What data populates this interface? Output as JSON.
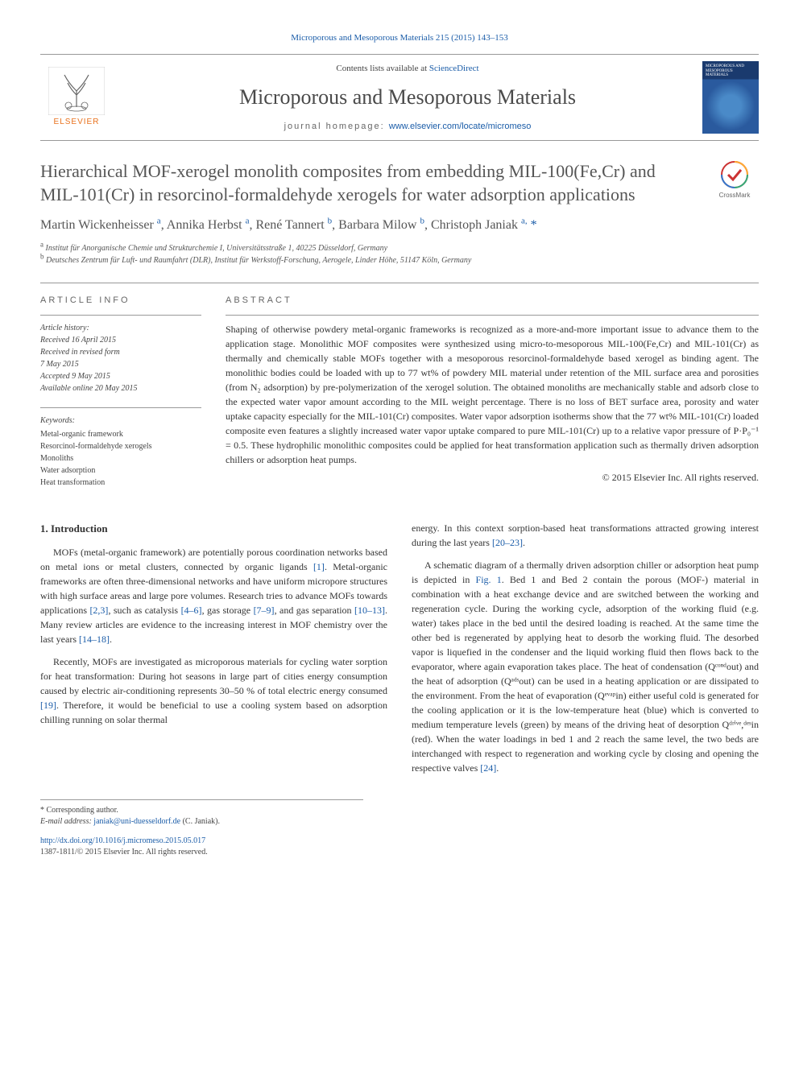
{
  "top_citation": {
    "text": "Microporous and Mesoporous Materials 215 (2015) 143–153",
    "href": "#"
  },
  "header": {
    "contents_prefix": "Contents lists available at ",
    "contents_link": "ScienceDirect",
    "journal": "Microporous and Mesoporous Materials",
    "homepage_prefix": "journal homepage: ",
    "homepage_link": "www.elsevier.com/locate/micromeso",
    "brand": "ELSEVIER",
    "cover_label": "MICROPOROUS AND MESOPOROUS MATERIALS"
  },
  "crossmark": "CrossMark",
  "article": {
    "title": "Hierarchical MOF-xerogel monolith composites from embedding MIL-100(Fe,Cr) and MIL-101(Cr) in resorcinol-formaldehyde xerogels for water adsorption applications",
    "authors_html": "Martin Wickenheisser <sup>a</sup>, Annika Herbst <sup>a</sup>, René Tannert <sup>b</sup>, Barbara Milow <sup>b</sup>, Christoph Janiak <sup>a,</sup> <span class='corr'>*</span>",
    "affiliations": [
      {
        "sup": "a",
        "text": "Institut für Anorganische Chemie und Strukturchemie I, Universitätsstraße 1, 40225 Düsseldorf, Germany"
      },
      {
        "sup": "b",
        "text": "Deutsches Zentrum für Luft- und Raumfahrt (DLR), Institut für Werkstoff-Forschung, Aerogele, Linder Höhe, 51147 Köln, Germany"
      }
    ]
  },
  "info": {
    "head": "ARTICLE INFO",
    "history_label": "Article history:",
    "history": [
      "Received 16 April 2015",
      "Received in revised form",
      "7 May 2015",
      "Accepted 9 May 2015",
      "Available online 20 May 2015"
    ],
    "keywords_label": "Keywords:",
    "keywords": [
      "Metal-organic framework",
      "Resorcinol-formaldehyde xerogels",
      "Monoliths",
      "Water adsorption",
      "Heat transformation"
    ]
  },
  "abstract": {
    "head": "ABSTRACT",
    "text": "Shaping of otherwise powdery metal-organic frameworks is recognized as a more-and-more important issue to advance them to the application stage. Monolithic MOF composites were synthesized using micro-to-mesoporous MIL-100(Fe,Cr) and MIL-101(Cr) as thermally and chemically stable MOFs together with a mesoporous resorcinol-formaldehyde based xerogel as binding agent. The monolithic bodies could be loaded with up to 77 wt% of powdery MIL material under retention of the MIL surface area and porosities (from N₂ adsorption) by pre-polymerization of the xerogel solution. The obtained monoliths are mechanically stable and adsorb close to the expected water vapor amount according to the MIL weight percentage. There is no loss of BET surface area, porosity and water uptake capacity especially for the MIL-101(Cr) composites. Water vapor adsorption isotherms show that the 77 wt% MIL-101(Cr) loaded composite even features a slightly increased water vapor uptake compared to pure MIL-101(Cr) up to a relative vapor pressure of P·P₀⁻¹ = 0.5. These hydrophilic monolithic composites could be applied for heat transformation application such as thermally driven adsorption chillers or adsorption heat pumps.",
    "copyright": "© 2015 Elsevier Inc. All rights reserved."
  },
  "body": {
    "intro_head": "1. Introduction",
    "p1": "MOFs (metal-organic framework) are potentially porous coordination networks based on metal ions or metal clusters, connected by organic ligands [1]. Metal-organic frameworks are often three-dimensional networks and have uniform micropore structures with high surface areas and large pore volumes. Research tries to advance MOFs towards applications [2,3], such as catalysis [4–6], gas storage [7–9], and gas separation [10–13]. Many review articles are evidence to the increasing interest in MOF chemistry over the last years [14–18].",
    "p2": "Recently, MOFs are investigated as microporous materials for cycling water sorption for heat transformation: During hot seasons in large part of cities energy consumption caused by electric air-conditioning represents 30–50 % of total electric energy consumed [19]. Therefore, it would be beneficial to use a cooling system based on adsorption chilling running on solar thermal",
    "p3": "energy. In this context sorption-based heat transformations attracted growing interest during the last years [20–23].",
    "p4": "A schematic diagram of a thermally driven adsorption chiller or adsorption heat pump is depicted in Fig. 1. Bed 1 and Bed 2 contain the porous (MOF-) material in combination with a heat exchange device and are switched between the working and regeneration cycle. During the working cycle, adsorption of the working fluid (e.g. water) takes place in the bed until the desired loading is reached. At the same time the other bed is regenerated by applying heat to desorb the working fluid. The desorbed vapor is liquefied in the condenser and the liquid working fluid then flows back to the evaporator, where again evaporation takes place. The heat of condensation (Qᶜᵒⁿᵈout) and the heat of adsorption (Qᵃᵈˢout) can be used in a heating application or are dissipated to the environment. From the heat of evaporation (Qᵉᵛᵃᵖin) either useful cold is generated for the cooling application or it is the low-temperature heat (blue) which is converted to medium temperature levels (green) by means of the driving heat of desorption Qᵈʳⁱᵛᵉ,ᵈᵉˢin (red). When the water loadings in bed 1 and 2 reach the same level, the two beds are interchanged with respect to regeneration and working cycle by closing and opening the respective valves [24]."
  },
  "footnotes": {
    "corr": "* Corresponding author.",
    "email_label": "E-mail address: ",
    "email": "janiak@uni-duesseldorf.de",
    "email_suffix": " (C. Janiak).",
    "doi": "http://dx.doi.org/10.1016/j.micromeso.2015.05.017",
    "issn_copy": "1387-1811/© 2015 Elsevier Inc. All rights reserved."
  },
  "colors": {
    "link": "#1a5ca8",
    "brand": "#e8711c",
    "text": "#333333",
    "rule": "#999999"
  }
}
